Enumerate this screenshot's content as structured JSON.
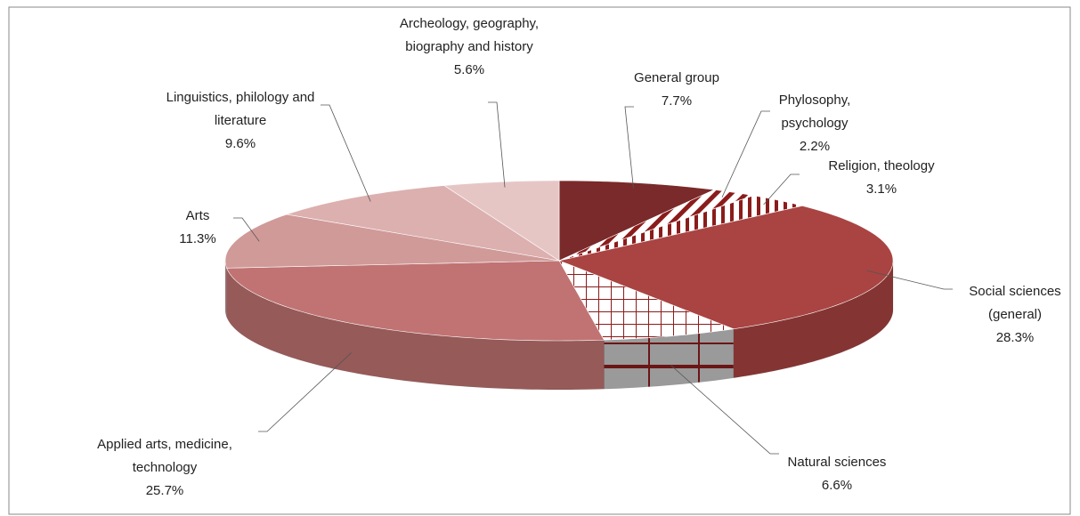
{
  "chart_data": {
    "type": "pie3d",
    "categories": [
      "General group",
      "Phylosophy, psychology",
      "Religion, theology",
      "Social sciences (general)",
      "Natural sciences",
      "Applied arts, medicine, technology",
      "Arts",
      "Linguistics, philology and literature",
      "Archeology, geography, biography and history"
    ],
    "values": [
      7.7,
      2.2,
      3.1,
      28.3,
      6.6,
      25.7,
      11.3,
      9.6,
      5.6
    ],
    "value_labels": [
      "7.7%",
      "2.2%",
      "3.1%",
      "28.3%",
      "6.6%",
      "25.7%",
      "11.3%",
      "9.6%",
      "5.6%"
    ],
    "colors": [
      "#7a2a2a",
      "#8b1c1c",
      "#8b1c1c",
      "#a94442",
      "#8b1c1c",
      "#c07372",
      "#d09a99",
      "#dcb0af",
      "#e6c6c5"
    ],
    "hatch": [
      "none",
      "diagonal",
      "vertical",
      "none",
      "grid",
      "none",
      "none",
      "none",
      "none"
    ]
  }
}
